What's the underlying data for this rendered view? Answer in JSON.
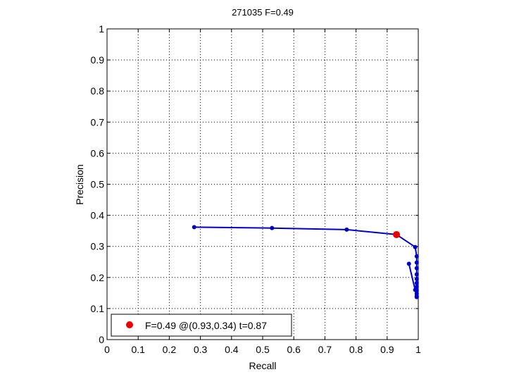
{
  "chart_data": {
    "type": "line",
    "title": "271035 F=0.49",
    "xlabel": "Recall",
    "ylabel": "Precision",
    "xlim": [
      0,
      1
    ],
    "ylim": [
      0,
      1
    ],
    "xticks": [
      "0",
      "0.1",
      "0.2",
      "0.3",
      "0.4",
      "0.5",
      "0.6",
      "0.7",
      "0.8",
      "0.9",
      "1"
    ],
    "yticks": [
      "0",
      "0.1",
      "0.2",
      "0.3",
      "0.4",
      "0.5",
      "0.6",
      "0.7",
      "0.8",
      "0.9",
      "1"
    ],
    "grid": true,
    "grid_style": "dotted",
    "series": [
      {
        "color": "#0000cc",
        "marker": "dot",
        "points": [
          [
            0.28,
            0.362
          ],
          [
            0.53,
            0.359
          ],
          [
            0.77,
            0.354
          ],
          [
            0.93,
            0.338
          ],
          [
            0.99,
            0.298
          ],
          [
            0.995,
            0.268
          ],
          [
            0.995,
            0.248
          ],
          [
            0.995,
            0.23
          ],
          [
            0.995,
            0.21
          ],
          [
            0.995,
            0.195
          ],
          [
            0.995,
            0.182
          ],
          [
            0.995,
            0.17
          ],
          [
            0.995,
            0.158
          ],
          [
            0.995,
            0.148
          ],
          [
            0.995,
            0.14
          ],
          [
            0.995,
            0.137
          ],
          [
            0.99,
            0.16
          ],
          [
            0.97,
            0.244
          ]
        ]
      },
      {
        "color": "#ee0000",
        "marker": "large-dot",
        "points": [
          [
            0.93,
            0.338
          ]
        ]
      }
    ],
    "legend": {
      "position": "bottom-left",
      "entries": [
        {
          "label": "F=0.49 @(0.93,0.34) t=0.87",
          "color": "#ee0000"
        }
      ]
    }
  }
}
